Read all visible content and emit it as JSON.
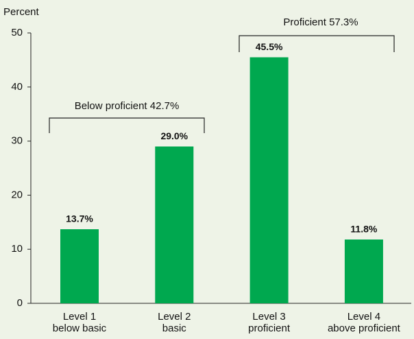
{
  "chart_data": {
    "type": "bar",
    "y_label": "Percent",
    "categories": [
      [
        "Level 1",
        "below basic"
      ],
      [
        "Level 2",
        "basic"
      ],
      [
        "Level 3",
        "proficient"
      ],
      [
        "Level 4",
        "above proficient"
      ]
    ],
    "values": [
      13.7,
      29.0,
      45.5,
      11.8
    ],
    "value_labels": [
      "13.7%",
      "29.0%",
      "45.5%",
      "11.8%"
    ],
    "color": "#00a84f",
    "ylim": [
      0,
      50
    ],
    "yticks": [
      0,
      10,
      20,
      30,
      40,
      50
    ],
    "annotations": [
      "Below proficient 42.7%",
      "Proficient 57.3%"
    ]
  }
}
